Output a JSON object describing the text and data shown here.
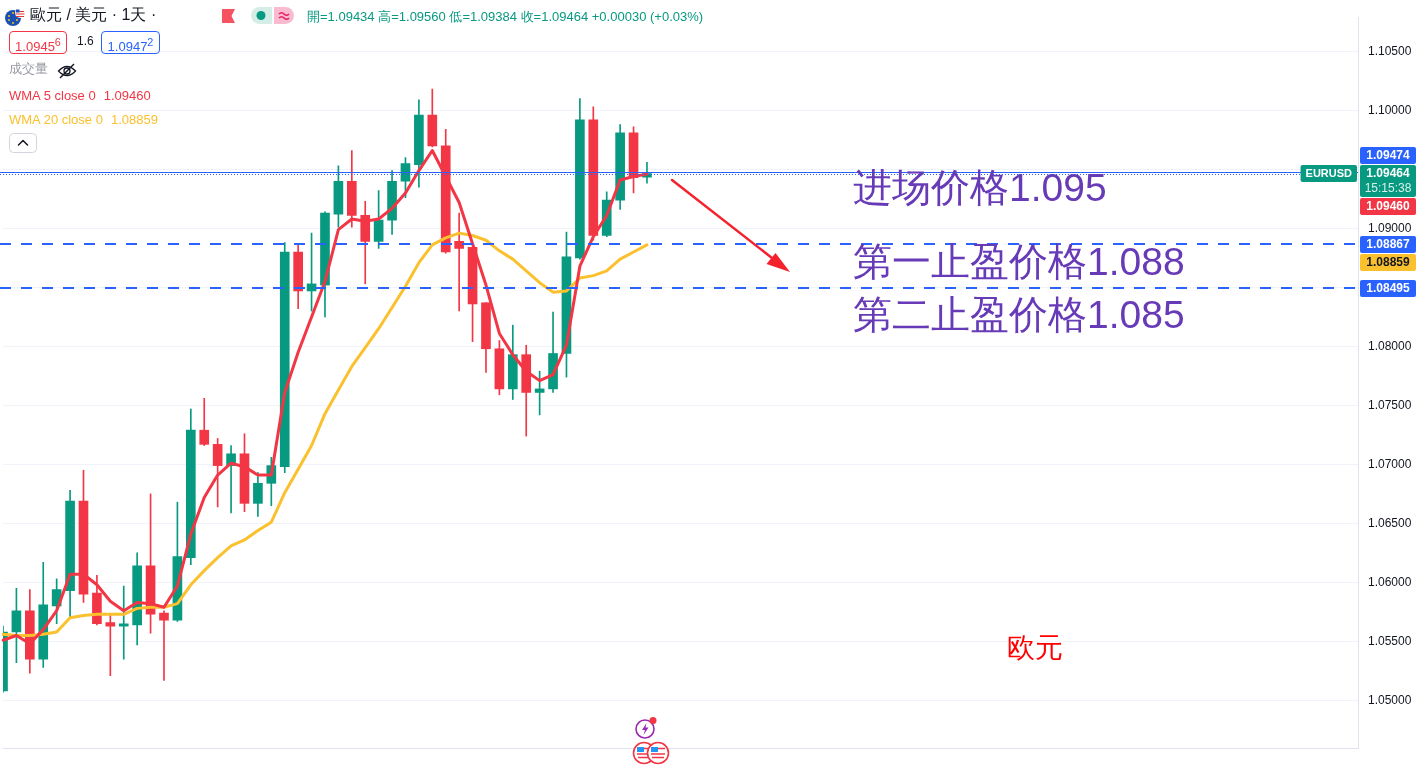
{
  "chart_data": {
    "type": "candlestick",
    "title": "歐元 / 美元 · 1天 ·",
    "subtitle": "開=1.09434 高=1.09560 低=1.09384 收=1.09464 +0.00030 (+0.03%)",
    "categories": [
      null,
      null,
      null,
      null,
      null,
      null,
      null,
      null,
      null,
      null,
      null,
      null,
      null,
      null,
      null,
      null,
      null,
      null,
      null,
      null,
      null,
      null,
      null,
      null,
      null,
      null,
      null,
      null,
      null,
      null,
      null,
      null,
      null,
      null,
      null,
      null,
      null,
      null,
      null,
      null,
      null,
      null,
      null,
      null,
      null,
      null,
      null,
      null,
      null,
      null,
      null,
      null,
      null,
      null,
      null,
      null,
      null,
      null,
      null,
      null,
      null,
      null,
      null,
      null,
      null,
      null,
      null,
      null,
      null,
      null,
      null,
      null,
      null,
      null,
      null,
      null,
      null,
      null,
      null,
      null,
      null,
      null,
      null,
      null,
      null,
      null,
      null,
      null,
      null,
      null,
      null,
      null,
      null,
      null,
      null,
      null,
      null,
      null,
      null,
      null,
      null,
      null
    ],
    "ohlc": [
      [
        1.0508,
        1.0563,
        1.0507,
        1.0558
      ],
      [
        1.0558,
        1.0595,
        1.0532,
        1.0576
      ],
      [
        1.0576,
        1.0594,
        1.0523,
        1.0535
      ],
      [
        1.0535,
        1.0617,
        1.0528,
        1.0581
      ],
      [
        1.058,
        1.0603,
        1.0565,
        1.0594
      ],
      [
        1.0593,
        1.0678,
        1.0571,
        1.0669
      ],
      [
        1.0669,
        1.0695,
        1.0583,
        1.059
      ],
      [
        1.0591,
        1.0606,
        1.0564,
        1.0565
      ],
      [
        1.0566,
        1.0573,
        1.0521,
        1.0563
      ],
      [
        1.0563,
        1.0597,
        1.0535,
        1.0565
      ],
      [
        1.0564,
        1.0625,
        1.0547,
        1.0614
      ],
      [
        1.0614,
        1.0675,
        1.0557,
        1.0573
      ],
      [
        1.0574,
        1.0576,
        1.0517,
        1.0568
      ],
      [
        1.0568,
        1.0668,
        1.0567,
        1.0622
      ],
      [
        1.0621,
        1.0747,
        1.0615,
        1.0729
      ],
      [
        1.0729,
        1.0756,
        1.0716,
        1.0717
      ],
      [
        1.0717,
        1.0722,
        1.0664,
        1.0699
      ],
      [
        1.0699,
        1.0716,
        1.0659,
        1.0709
      ],
      [
        1.0709,
        1.0726,
        1.066,
        1.0667
      ],
      [
        1.0667,
        1.0693,
        1.0656,
        1.0684
      ],
      [
        1.0684,
        1.0706,
        1.0665,
        1.0699
      ],
      [
        1.0698,
        1.0888,
        1.0693,
        1.088
      ],
      [
        1.088,
        1.0886,
        1.0832,
        1.0847
      ],
      [
        1.0847,
        1.0896,
        1.083,
        1.0853
      ],
      [
        1.0852,
        1.0914,
        1.0825,
        1.0913
      ],
      [
        1.0912,
        1.0953,
        1.0901,
        1.094
      ],
      [
        1.094,
        1.0966,
        1.0901,
        1.0911
      ],
      [
        1.0911,
        1.0923,
        1.0853,
        1.0889
      ],
      [
        1.0889,
        1.0932,
        1.0883,
        1.0907
      ],
      [
        1.0907,
        1.0949,
        1.0895,
        1.094
      ],
      [
        1.094,
        1.096,
        1.0926,
        1.0955
      ],
      [
        1.0954,
        1.1009,
        1.0935,
        1.0996
      ],
      [
        1.0996,
        1.1018,
        1.0969,
        1.097
      ],
      [
        1.097,
        1.0984,
        1.0879,
        1.088
      ],
      [
        1.0889,
        1.0913,
        1.083,
        1.0883
      ],
      [
        1.0884,
        1.0884,
        1.0804,
        1.0836
      ],
      [
        1.0837,
        1.0837,
        1.0778,
        1.0798
      ],
      [
        1.0798,
        1.0805,
        1.0759,
        1.0764
      ],
      [
        1.0764,
        1.0818,
        1.0755,
        1.0793
      ],
      [
        1.0793,
        1.0801,
        1.0724,
        1.0761
      ],
      [
        1.0761,
        1.0779,
        1.0742,
        1.0764
      ],
      [
        1.0764,
        1.0829,
        1.0761,
        1.0794
      ],
      [
        1.0794,
        1.0897,
        1.0774,
        1.0876
      ],
      [
        1.0875,
        1.101,
        1.0874,
        1.0992
      ],
      [
        1.0992,
        1.1003,
        1.089,
        1.0894
      ],
      [
        1.0894,
        1.0931,
        1.0893,
        1.0924
      ],
      [
        1.0924,
        1.0988,
        1.0916,
        1.0981
      ],
      [
        1.0981,
        1.0986,
        1.093,
        1.0943
      ],
      [
        1.09434,
        1.0956,
        1.09384,
        1.09464
      ],
      null,
      null,
      null,
      null,
      null,
      null,
      null,
      null,
      null,
      null,
      null,
      null,
      null,
      null,
      null,
      null,
      null,
      null,
      null,
      null,
      null,
      null,
      null,
      null,
      null,
      null,
      null,
      null,
      null,
      null,
      null,
      null,
      null,
      null,
      null,
      null,
      null,
      null,
      null,
      null,
      null,
      null,
      null,
      null,
      null,
      null,
      null,
      null,
      null,
      null,
      null,
      null,
      null
    ],
    "colors": [
      "#089981",
      "#089981",
      "#f23645",
      "#089981",
      "#089981",
      "#089981",
      "#f23645",
      "#f23645",
      "#f23645",
      "#089981",
      "#089981",
      "#f23645",
      "#f23645",
      "#089981",
      "#089981",
      "#f23645",
      "#f23645",
      "#089981",
      "#f23645",
      "#089981",
      "#089981",
      "#089981",
      "#f23645",
      "#089981",
      "#089981",
      "#089981",
      "#f23645",
      "#f23645",
      "#089981",
      "#089981",
      "#089981",
      "#089981",
      "#f23645",
      "#f23645",
      "#f23645",
      "#f23645",
      "#f23645",
      "#f23645",
      "#089981",
      "#f23645",
      "#089981",
      "#089981",
      "#089981",
      "#089981",
      "#f23645",
      "#089981",
      "#089981",
      "#f23645",
      "#089981",
      null,
      null,
      null,
      null,
      null,
      null,
      null,
      null,
      null,
      null,
      null,
      null,
      null,
      null,
      null,
      null,
      null,
      null,
      null,
      null,
      null,
      null,
      null,
      null,
      null,
      null,
      null,
      null,
      null,
      null,
      null,
      null,
      null,
      null,
      null,
      null,
      null,
      null,
      null,
      null,
      null,
      null,
      null,
      null,
      null,
      null,
      null,
      null,
      null,
      null,
      null,
      null,
      null
    ],
    "series": [
      {
        "name": "WMA 5 close 0",
        "type": "line",
        "color": "#f23645",
        "values": [
          1.0551,
          1.0555,
          1.0548,
          1.056,
          1.0576,
          1.0607,
          1.0607,
          1.0598,
          1.0584,
          1.0576,
          1.0583,
          1.0582,
          1.0579,
          1.0597,
          1.0641,
          1.0672,
          1.0691,
          1.0701,
          1.0698,
          1.0691,
          1.0691,
          1.0761,
          1.0795,
          1.0825,
          1.0855,
          1.0899,
          1.0908,
          1.0906,
          1.0908,
          1.0917,
          1.093,
          1.0949,
          1.0966,
          1.0944,
          1.0922,
          1.0887,
          1.0852,
          1.0811,
          1.0793,
          1.0779,
          1.0771,
          1.0776,
          1.0801,
          1.0868,
          1.0893,
          1.0911,
          1.0941,
          1.0944,
          1.0946,
          null,
          null,
          null,
          null,
          null,
          null,
          null,
          null,
          null,
          null,
          null,
          null,
          null,
          null,
          null,
          null,
          null,
          null,
          null,
          null,
          null,
          null,
          null,
          null,
          null,
          null,
          null,
          null,
          null,
          null,
          null,
          null,
          null,
          null,
          null,
          null,
          null,
          null,
          null,
          null,
          null,
          null,
          null,
          null,
          null,
          null,
          null,
          null,
          null,
          null,
          null,
          null,
          null
        ]
      },
      {
        "name": "WMA 20 close 0",
        "type": "line",
        "color": "#fbc02d",
        "values": [
          1.0556,
          1.0555,
          1.0555,
          1.0556,
          1.0558,
          1.057,
          1.0572,
          1.0573,
          1.0573,
          1.0573,
          1.0578,
          1.0579,
          1.0579,
          1.0582,
          1.0598,
          1.061,
          1.0621,
          1.0631,
          1.0636,
          1.0644,
          1.0651,
          1.0676,
          1.0696,
          1.0716,
          1.0743,
          1.0763,
          1.0783,
          1.0799,
          1.0815,
          1.0833,
          1.0851,
          1.0871,
          1.0886,
          1.0892,
          1.0896,
          1.0894,
          1.089,
          1.0881,
          1.0874,
          1.0864,
          1.0854,
          1.0846,
          1.0847,
          1.0858,
          1.086,
          1.0864,
          1.0874,
          1.088,
          1.0886,
          null,
          null,
          null,
          null,
          null,
          null,
          null,
          null,
          null,
          null,
          null,
          null,
          null,
          null,
          null,
          null,
          null,
          null,
          null,
          null,
          null,
          null,
          null,
          null,
          null,
          null,
          null,
          null,
          null,
          null,
          null,
          null,
          null,
          null,
          null,
          null,
          null,
          null,
          null,
          null,
          null,
          null,
          null,
          null,
          null,
          null,
          null,
          null,
          null,
          null,
          null,
          null,
          null
        ]
      }
    ],
    "ylim": [
      1.0459,
      1.1079
    ],
    "yticks": [
      {
        "value": 1.05,
        "label": "1.05000"
      },
      {
        "value": 1.055,
        "label": "1.05500"
      },
      {
        "value": 1.06,
        "label": "1.06000"
      },
      {
        "value": 1.065,
        "label": "1.06500"
      },
      {
        "value": 1.07,
        "label": "1.07000"
      },
      {
        "value": 1.075,
        "label": "1.07500"
      },
      {
        "value": 1.08,
        "label": "1.08000"
      },
      {
        "value": 1.085,
        "label": null
      },
      {
        "value": 1.09,
        "label": "1.09000"
      },
      {
        "value": 1.095,
        "label": null
      },
      {
        "value": 1.1,
        "label": "1.10000"
      },
      {
        "value": 1.105,
        "label": "1.10500"
      }
    ],
    "grid": "y",
    "legend": "top left",
    "tick_labels": "y",
    "marker": "none",
    "ref_lines": [
      {
        "axis": "y",
        "value": 1.09474,
        "label": "1.09474",
        "color": "#2962ff",
        "line_style": "solid"
      },
      {
        "axis": "y",
        "value": 1.09464,
        "color": "#2962ff",
        "line_style": "dotted"
      },
      {
        "axis": "y",
        "value": 1.08867,
        "label": "1.08867",
        "color": "#2962ff",
        "line_style": "dashed"
      },
      {
        "axis": "y",
        "value": 1.08495,
        "label": "1.08495",
        "color": "#2962ff",
        "line_style": "dashed"
      }
    ],
    "annotations": [
      "1.0945$^{6}$",
      "1.6",
      "1.0947$^{2}$",
      "成交量",
      "EURUSD",
      "15:15:38",
      "进场价格1.095",
      "第一止盈价格1.088",
      "第二止盈价格1.085",
      "欧元",
      "1.09460",
      "1.08859",
      "1.09464",
      "1.09460",
      "1.08859"
    ]
  }
}
